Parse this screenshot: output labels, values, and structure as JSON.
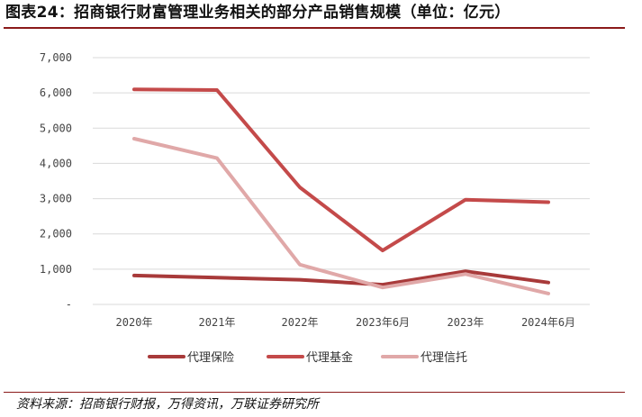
{
  "title": "图表24：招商银行财富管理业务相关的部分产品销售规模（单位：亿元）",
  "source": "资料来源：招商银行财报，万得资讯，万联证券研究所",
  "chart_data": {
    "type": "line",
    "title": "",
    "xlabel": "",
    "ylabel": "",
    "categories": [
      "2020年",
      "2021年",
      "2022年",
      "2023年6月",
      "2023年",
      "2024年6月"
    ],
    "y_tick_labels": [
      "-",
      "1,000",
      "2,000",
      "3,000",
      "4,000",
      "5,000",
      "6,000",
      "7,000"
    ],
    "ylim": [
      0,
      7000
    ],
    "grid": true,
    "legend_position": "bottom",
    "series": [
      {
        "name": "代理保险",
        "color": "#a83a3a",
        "values": [
          820,
          760,
          700,
          560,
          940,
          620
        ]
      },
      {
        "name": "代理基金",
        "color": "#c44a4a",
        "values": [
          6100,
          6080,
          3320,
          1530,
          2970,
          2900
        ]
      },
      {
        "name": "代理信托",
        "color": "#e0a8a8",
        "values": [
          4700,
          4150,
          1130,
          480,
          860,
          310
        ]
      }
    ]
  }
}
